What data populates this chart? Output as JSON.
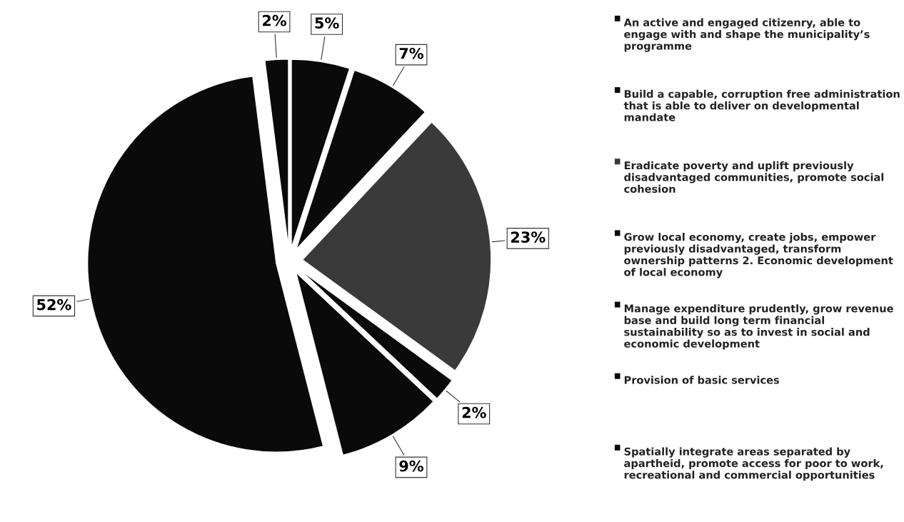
{
  "chart_data": {
    "type": "pie",
    "categories": [
      "An active and engaged citizenry, able to engage with and shape the municipality’s programme",
      "Build a capable, corruption free administration that is able to deliver on developmental mandate",
      "Eradicate poverty and uplift previously disadvantaged communities, promote social cohesion",
      "Grow local economy, create jobs, empower previously disadvantaged, transform ownership patterns 2. Economic development of local economy",
      "Manage expenditure prudently, grow revenue base and build long term financial sustainability so as to invest in social and economic development",
      "Provision of basic services",
      "Spatially integrate areas separated by apartheid, promote access for poor to work, recreational and commercial opportunities"
    ],
    "values": [
      5,
      7,
      23,
      2,
      9,
      52,
      2
    ],
    "value_labels": [
      "5%",
      "7%",
      "23%",
      "2%",
      "9%",
      "52%",
      "2%"
    ],
    "colors": [
      "#0a0a0a",
      "#0a0a0a",
      "#3a3a3a",
      "#0a0a0a",
      "#0a0a0a",
      "#0a0a0a",
      "#0a0a0a"
    ],
    "legend": "right"
  }
}
